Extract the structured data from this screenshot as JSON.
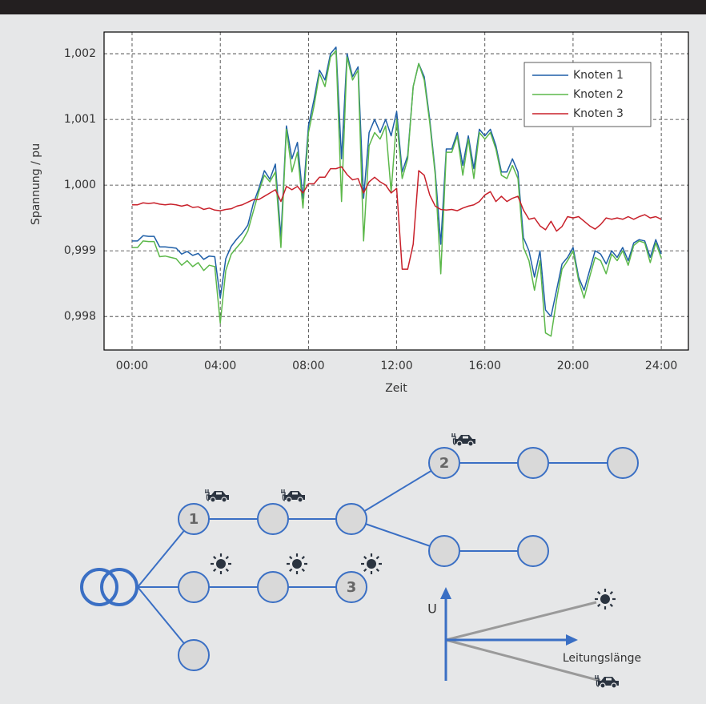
{
  "chart_data": {
    "type": "line",
    "y_axis_label": "Spannung / pu",
    "x_axis_label": "Zeit",
    "x": [
      0,
      0.25,
      0.5,
      0.75,
      1,
      1.25,
      1.5,
      1.75,
      2,
      2.25,
      2.5,
      2.75,
      3,
      3.25,
      3.5,
      3.75,
      4,
      4.25,
      4.5,
      4.75,
      5,
      5.25,
      5.5,
      5.75,
      6,
      6.25,
      6.5,
      6.75,
      7,
      7.25,
      7.5,
      7.75,
      8,
      8.25,
      8.5,
      8.75,
      9,
      9.25,
      9.5,
      9.75,
      10,
      10.25,
      10.5,
      10.75,
      11,
      11.25,
      11.5,
      11.75,
      12,
      12.25,
      12.5,
      12.75,
      13,
      13.25,
      13.5,
      13.75,
      14,
      14.25,
      14.5,
      14.75,
      15,
      15.25,
      15.5,
      15.75,
      16,
      16.25,
      16.5,
      16.75,
      17,
      17.25,
      17.5,
      17.75,
      18,
      18.25,
      18.5,
      18.75,
      19,
      19.25,
      19.5,
      19.75,
      20,
      20.25,
      20.5,
      20.75,
      21,
      21.25,
      21.5,
      21.75,
      22,
      22.25,
      22.5,
      22.75,
      23,
      23.25,
      23.5,
      23.75,
      24
    ],
    "series": [
      {
        "name": "Knoten 1",
        "color": "#1f5fa8",
        "values": [
          0.99915,
          0.99915,
          0.99923,
          0.99922,
          0.99922,
          0.99906,
          0.99906,
          0.99905,
          0.99904,
          0.99895,
          0.99899,
          0.99893,
          0.99896,
          0.99887,
          0.99892,
          0.99891,
          0.99828,
          0.99888,
          0.99907,
          0.99918,
          0.99927,
          0.99939,
          0.99972,
          0.99995,
          1.00022,
          1.00009,
          1.00032,
          0.9992,
          1.0009,
          1.0004,
          1.00065,
          0.9998,
          1.0009,
          1.0013,
          1.00175,
          1.0016,
          1.002,
          1.0021,
          1.0004,
          1.002,
          1.00165,
          1.0018,
          0.9998,
          1.0008,
          1.001,
          1.0008,
          1.001,
          1.00075,
          1.00112,
          1.0002,
          1.00045,
          1.0015,
          1.00185,
          1.00165,
          1.001,
          1.0002,
          0.9991,
          1.00055,
          1.00055,
          1.0008,
          1.0003,
          1.00075,
          1.00025,
          1.00085,
          1.00075,
          1.00085,
          1.0006,
          1.0002,
          1.0002,
          1.0004,
          1.0002,
          0.9992,
          0.999,
          0.9986,
          0.999,
          0.9981,
          0.998,
          0.9984,
          0.9988,
          0.9989,
          0.99905,
          0.9986,
          0.9984,
          0.9987,
          0.999,
          0.99895,
          0.9988,
          0.999,
          0.9989,
          0.99905,
          0.99885,
          0.99912,
          0.99917,
          0.99915,
          0.9989,
          0.99917,
          0.99895
        ]
      },
      {
        "name": "Knoten 2",
        "color": "#5cb84a",
        "values": [
          0.99905,
          0.99905,
          0.99915,
          0.99914,
          0.99914,
          0.99891,
          0.99892,
          0.9989,
          0.99888,
          0.99878,
          0.99885,
          0.99876,
          0.99882,
          0.9987,
          0.99878,
          0.99876,
          0.9979,
          0.9987,
          0.99895,
          0.99905,
          0.99915,
          0.9993,
          0.9996,
          0.9999,
          1.00015,
          1.00005,
          1.0002,
          0.99905,
          1.00085,
          1.0002,
          1.0005,
          0.99965,
          1.0008,
          1.0012,
          1.0017,
          1.0015,
          1.00195,
          1.00205,
          0.99975,
          1.00195,
          1.0016,
          1.00175,
          0.99915,
          1.0006,
          1.0008,
          1.0007,
          1.0009,
          0.9999,
          1.001,
          1.0001,
          1.0004,
          1.0015,
          1.00185,
          1.0016,
          1.00095,
          1.00015,
          0.99865,
          1.0005,
          1.0005,
          1.00075,
          1.00015,
          1.0007,
          1.0001,
          1.0008,
          1.0007,
          1.0008,
          1.00055,
          1.00015,
          1.0001,
          1.0003,
          1.0001,
          0.99905,
          0.99885,
          0.9984,
          0.99885,
          0.99775,
          0.9977,
          0.99825,
          0.99872,
          0.99885,
          0.999,
          0.99855,
          0.99828,
          0.9986,
          0.9989,
          0.99885,
          0.99865,
          0.99895,
          0.99885,
          0.999,
          0.99878,
          0.99908,
          0.99915,
          0.99912,
          0.99882,
          0.99912,
          0.99889
        ]
      },
      {
        "name": "Knoten 3",
        "color": "#c8202a",
        "values": [
          0.9997,
          0.9997,
          0.99973,
          0.99972,
          0.99973,
          0.99971,
          0.9997,
          0.99971,
          0.9997,
          0.99968,
          0.9997,
          0.99966,
          0.99967,
          0.99963,
          0.99965,
          0.99962,
          0.99961,
          0.99963,
          0.99964,
          0.99968,
          0.9997,
          0.99974,
          0.99978,
          0.99978,
          0.99983,
          0.99988,
          0.99993,
          0.99975,
          0.99998,
          0.99993,
          0.99998,
          0.99988,
          1.00002,
          1.00002,
          1.00012,
          1.00012,
          1.00025,
          1.00025,
          1.00028,
          1.00016,
          1.00008,
          1.0001,
          0.99988,
          1.00005,
          1.00012,
          1.00005,
          1.0,
          0.99988,
          0.99995,
          0.99872,
          0.99872,
          0.9991,
          1.00022,
          1.00015,
          0.99985,
          0.99968,
          0.99963,
          0.99962,
          0.99963,
          0.99961,
          0.99965,
          0.99968,
          0.9997,
          0.99975,
          0.99985,
          0.9999,
          0.99975,
          0.99983,
          0.99975,
          0.9998,
          0.99983,
          0.99962,
          0.99948,
          0.9995,
          0.99938,
          0.99932,
          0.99945,
          0.9993,
          0.99937,
          0.99952,
          0.9995,
          0.99952,
          0.99945,
          0.99938,
          0.99933,
          0.9994,
          0.9995,
          0.99948,
          0.9995,
          0.99948,
          0.99952,
          0.99948,
          0.99952,
          0.99955,
          0.9995,
          0.99952,
          0.99948
        ]
      }
    ],
    "xlim": [
      -1.27,
      25.23
    ],
    "xticks": [
      {
        "value": 0,
        "label": "00:00"
      },
      {
        "value": 4,
        "label": "04:00"
      },
      {
        "value": 8,
        "label": "08:00"
      },
      {
        "value": 12,
        "label": "12:00"
      },
      {
        "value": 16,
        "label": "16:00"
      },
      {
        "value": 20,
        "label": "20:00"
      },
      {
        "value": 24,
        "label": "24:00"
      }
    ],
    "ylim": [
      0.99749,
      1.00233
    ],
    "yticks": [
      {
        "value": 0.998,
        "label": "0,998"
      },
      {
        "value": 0.999,
        "label": "0,999"
      },
      {
        "value": 1.0,
        "label": "1,000"
      },
      {
        "value": 1.001,
        "label": "1,001"
      },
      {
        "value": 1.002,
        "label": "1,002"
      }
    ],
    "grid": true,
    "legend": "top-right"
  },
  "diagram": {
    "node_labels": [
      "1",
      "2",
      "3"
    ],
    "inset": {
      "y_axis_label": "U",
      "x_axis_label": "Leitungslänge"
    }
  }
}
